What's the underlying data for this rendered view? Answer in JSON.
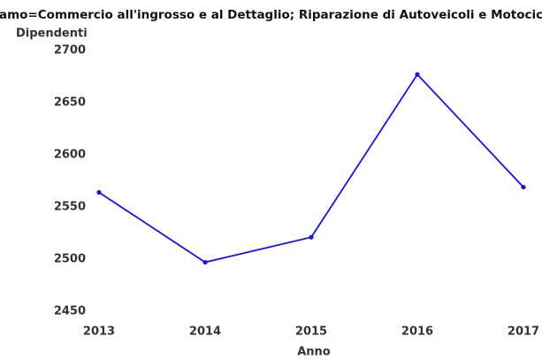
{
  "chart_data": {
    "type": "line",
    "title": "Ramo=Commercio all'ingrosso e al Dettaglio; Riparazione di Autoveicoli e Motocicli",
    "y_label": "Dipendenti",
    "x_label": "Anno",
    "x": [
      2013,
      2014,
      2015,
      2016,
      2017
    ],
    "series": [
      {
        "name": "Dipendenti",
        "color": "#1414e6",
        "values": [
          2564,
          2497,
          2521,
          2677,
          2569
        ]
      }
    ],
    "xlim": [
      2013,
      2017
    ],
    "xticks": [
      2013,
      2014,
      2015,
      2016,
      2017
    ],
    "ylim": [
      2450,
      2700
    ],
    "yticks": [
      2450,
      2500,
      2550,
      2600,
      2650,
      2700
    ],
    "grid": false
  }
}
